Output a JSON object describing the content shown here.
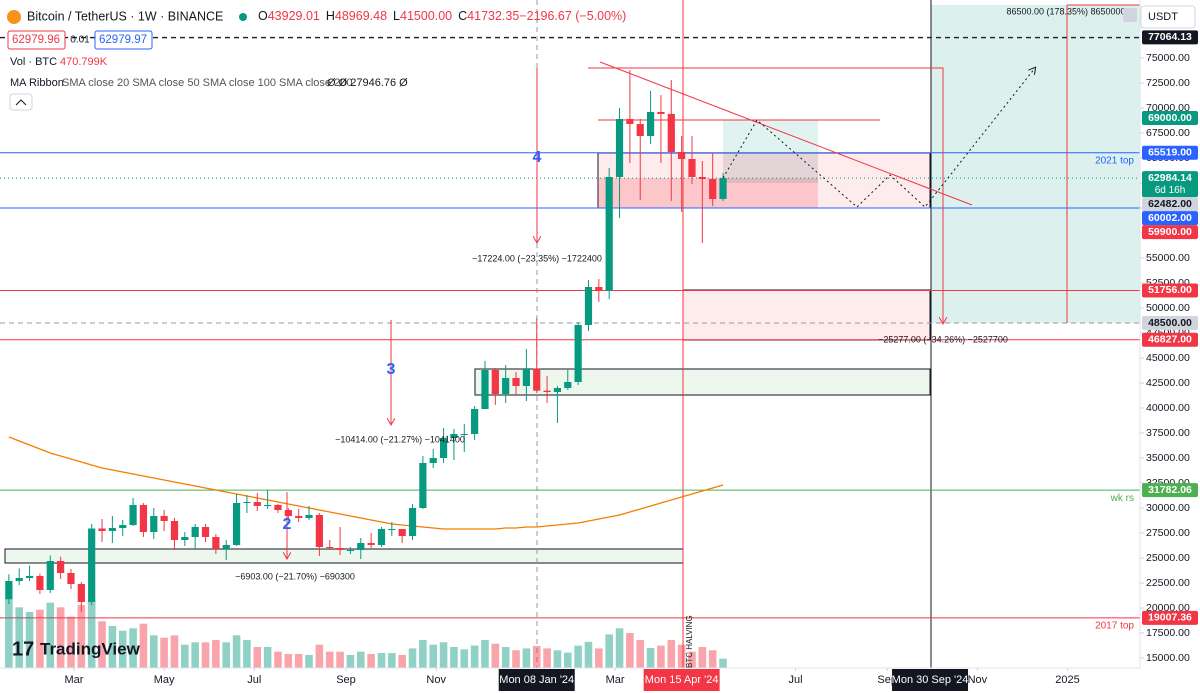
{
  "chart_data": {
    "type": "candlestick",
    "title": "Bitcoin / TetherUS · 1W · BINANCE",
    "ohlc_legend": [
      {
        "key": "O",
        "value": "43929.01"
      },
      {
        "key": "H",
        "value": "48969.48"
      },
      {
        "key": "L",
        "value": "41500.00"
      },
      {
        "key": "C",
        "value": "41732.35"
      },
      {
        "key": "",
        "value": "−2196.67 (−5.00%)"
      }
    ],
    "bid": "62979.96",
    "spread": "0.01",
    "ask": "62979.97",
    "volume_legend": {
      "title": "Vol · BTC",
      "value": "470.799K"
    },
    "ma_legend": {
      "title": "MA Ribbon",
      "inputs": "SMA close 20 SMA close 50 SMA close 100 SMA close 200",
      "values": "Ø Ø 27946.76 Ø"
    },
    "currency": "USDT",
    "brand": "TradingView",
    "x": [
      "2023-01-16",
      "2023-01-23",
      "2023-01-30",
      "2023-02-06",
      "2023-02-13",
      "2023-02-20",
      "2023-02-27",
      "2023-03-06",
      "2023-03-13",
      "2023-03-20",
      "2023-03-27",
      "2023-04-03",
      "2023-04-10",
      "2023-04-17",
      "2023-04-24",
      "2023-05-01",
      "2023-05-08",
      "2023-05-15",
      "2023-05-22",
      "2023-05-29",
      "2023-06-05",
      "2023-06-12",
      "2023-06-19",
      "2023-06-26",
      "2023-07-03",
      "2023-07-10",
      "2023-07-17",
      "2023-07-24",
      "2023-07-31",
      "2023-08-07",
      "2023-08-14",
      "2023-08-21",
      "2023-08-28",
      "2023-09-04",
      "2023-09-11",
      "2023-09-18",
      "2023-09-25",
      "2023-10-02",
      "2023-10-09",
      "2023-10-16",
      "2023-10-23",
      "2023-10-30",
      "2023-11-06",
      "2023-11-13",
      "2023-11-20",
      "2023-11-27",
      "2023-12-04",
      "2023-12-11",
      "2023-12-18",
      "2023-12-25",
      "2024-01-01",
      "2024-01-08",
      "2024-01-15",
      "2024-01-22",
      "2024-01-29",
      "2024-02-05",
      "2024-02-12",
      "2024-02-19",
      "2024-02-26",
      "2024-03-04",
      "2024-03-11",
      "2024-03-18",
      "2024-03-25",
      "2024-04-01",
      "2024-04-08",
      "2024-04-15",
      "2024-04-22",
      "2024-04-29",
      "2024-05-06",
      "2024-05-13"
    ],
    "open": [
      20880,
      22700,
      23000,
      23200,
      21800,
      24700,
      23500,
      22400,
      20600,
      27950,
      27700,
      28000,
      28300,
      30300,
      27600,
      29200,
      28700,
      26800,
      27100,
      28100,
      27100,
      25900,
      26300,
      30500,
      30600,
      30200,
      30300,
      29800,
      29200,
      29000,
      29300,
      26100,
      26000,
      25800,
      25800,
      26500,
      26300,
      27900,
      27900,
      27200,
      30000,
      34500,
      35000,
      37000,
      37400,
      37400,
      39900,
      43800,
      41400,
      43000,
      42200,
      43929.01,
      41732.35,
      41600,
      42000,
      42600,
      48300,
      52100,
      51700,
      63100,
      68900,
      68400,
      67200,
      69600,
      69400,
      65600,
      64900,
      63100,
      62900,
      60900
    ],
    "high": [
      23370,
      23960,
      24250,
      23440,
      25250,
      25130,
      23900,
      22600,
      28400,
      28900,
      29200,
      28800,
      31000,
      30500,
      30000,
      29800,
      29000,
      27600,
      28400,
      28400,
      27400,
      26800,
      31400,
      31300,
      31500,
      31800,
      30400,
      30000,
      29900,
      30200,
      29500,
      26800,
      28100,
      26100,
      27000,
      27500,
      28100,
      28600,
      27900,
      30400,
      35200,
      35900,
      38000,
      37900,
      38400,
      40200,
      44700,
      44000,
      44300,
      43600,
      45900,
      48969.48,
      43200,
      42200,
      43800,
      48600,
      52800,
      52900,
      64000,
      70000,
      73800,
      68900,
      71700,
      71300,
      72800,
      67200,
      67200,
      64700,
      65500,
      63500
    ],
    "low": [
      20400,
      22300,
      22700,
      21400,
      21500,
      22900,
      21900,
      19600,
      20300,
      26600,
      26500,
      27200,
      28200,
      27100,
      26900,
      27700,
      25800,
      26200,
      25900,
      26600,
      25400,
      24800,
      26200,
      29500,
      29700,
      29900,
      29500,
      28900,
      28600,
      28800,
      25200,
      25800,
      25300,
      25400,
      24900,
      26000,
      26100,
      27200,
      26500,
      26800,
      29900,
      34000,
      34500,
      34800,
      35600,
      36800,
      39900,
      40300,
      40500,
      41300,
      40700,
      41500,
      40500,
      38500,
      41800,
      42300,
      47700,
      50600,
      50900,
      59000,
      64500,
      60800,
      66400,
      64500,
      60700,
      59600,
      62400,
      56500,
      60200,
      60700
    ],
    "close": [
      22700,
      23000,
      23200,
      21800,
      24700,
      23500,
      22400,
      20600,
      27950,
      27700,
      28000,
      28300,
      30300,
      27600,
      29200,
      28700,
      26800,
      27100,
      28100,
      27100,
      25900,
      26300,
      30500,
      30600,
      30200,
      30300,
      29800,
      29200,
      29000,
      29300,
      26100,
      26000,
      25800,
      25800,
      26500,
      26300,
      27900,
      27900,
      27200,
      30000,
      34500,
      35000,
      37000,
      37400,
      37400,
      39900,
      43800,
      41400,
      43000,
      42200,
      43900,
      41732.35,
      41600,
      42000,
      42600,
      48300,
      52100,
      51700,
      63100,
      68900,
      68400,
      67200,
      69600,
      69400,
      65600,
      64900,
      63100,
      62900,
      60900,
      62984.14
    ],
    "volume": [
      1500000,
      1300000,
      1200000,
      1250000,
      1400000,
      1300000,
      1100000,
      1350000,
      1450000,
      1000000,
      900000,
      800000,
      850000,
      950000,
      700000,
      650000,
      700000,
      500000,
      550000,
      550000,
      600000,
      550000,
      700000,
      600000,
      450000,
      450000,
      350000,
      300000,
      300000,
      280000,
      500000,
      350000,
      350000,
      280000,
      350000,
      300000,
      320000,
      320000,
      280000,
      420000,
      600000,
      500000,
      550000,
      450000,
      400000,
      480000,
      600000,
      520000,
      450000,
      380000,
      420000,
      470799,
      420000,
      380000,
      330000,
      480000,
      560000,
      420000,
      720000,
      850000,
      750000,
      600000,
      430000,
      480000,
      600000,
      500000,
      350000,
      450000,
      380000,
      200000
    ],
    "ma": {
      "color": "#f57c00",
      "values": [
        37100,
        36700,
        36300,
        35900,
        35500,
        35200,
        34900,
        34600,
        34300,
        34000,
        33800,
        33600,
        33400,
        33200,
        33000,
        32800,
        32600,
        32400,
        32200,
        32000,
        31800,
        31600,
        31400,
        31200,
        31000,
        30800,
        30600,
        30400,
        30200,
        30000,
        29800,
        29600,
        29400,
        29200,
        29000,
        28800,
        28600,
        28400,
        28300,
        28200,
        28100,
        28000,
        27900,
        27900,
        27900,
        27900,
        27900,
        27900,
        28000,
        28000,
        28100,
        28100,
        28200,
        28300,
        28400,
        28500,
        28700,
        28900,
        29100,
        29300,
        29600,
        29900,
        30200,
        30500,
        30800,
        31100,
        31400,
        31700,
        32000,
        32300
      ]
    },
    "up_color": "#089981",
    "down_color": "#f23645",
    "xlim": [
      "2023-01-10",
      "2025-02-19"
    ],
    "xticks": [
      {
        "value": "2023-03-01",
        "label": "Mar"
      },
      {
        "value": "2023-05-01",
        "label": "May"
      },
      {
        "value": "2023-07-01",
        "label": "Jul"
      },
      {
        "value": "2023-09-01",
        "label": "Sep"
      },
      {
        "value": "2023-11-01",
        "label": "Nov"
      },
      {
        "value": "2024-03-01",
        "label": "Mar"
      },
      {
        "value": "2024-07-01",
        "label": "Jul"
      },
      {
        "value": "2024-09-01",
        "label": "Sep"
      },
      {
        "value": "2024-11-01",
        "label": "Nov"
      },
      {
        "value": "2025-01-01",
        "label": "2025"
      }
    ],
    "x_markers": [
      {
        "value": "2024-01-08",
        "label": "Mon 08 Jan '24",
        "color": "#131722"
      },
      {
        "value": "2024-04-15",
        "label": "Mon 15 Apr '24",
        "color": "#f23645"
      },
      {
        "value": "2024-09-30",
        "label": "Mon 30 Sep '24",
        "color": "#131722"
      }
    ],
    "ylim": [
      14000,
      80800
    ],
    "yticks": [
      {
        "value": 75000,
        "label": "75000.00"
      },
      {
        "value": 72500,
        "label": "72500.00"
      },
      {
        "value": 70000,
        "label": "70000.00"
      },
      {
        "value": 67500,
        "label": "67500.00"
      },
      {
        "value": 65000,
        "label": "65000.00"
      },
      {
        "value": 62500,
        "label": "62500.00"
      },
      {
        "value": 60000,
        "label": "60000.00"
      },
      {
        "value": 57500,
        "label": "57500.00"
      },
      {
        "value": 55000,
        "label": "55000.00"
      },
      {
        "value": 52500,
        "label": "52500.00"
      },
      {
        "value": 50000,
        "label": "50000.00"
      },
      {
        "value": 47500,
        "label": "47500.00"
      },
      {
        "value": 45000,
        "label": "45000.00"
      },
      {
        "value": 42500,
        "label": "42500.00"
      },
      {
        "value": 40000,
        "label": "40000.00"
      },
      {
        "value": 37500,
        "label": "37500.00"
      },
      {
        "value": 35000,
        "label": "35000.00"
      },
      {
        "value": 32500,
        "label": "32500.00"
      },
      {
        "value": 30000,
        "label": "30000.00"
      },
      {
        "value": 27500,
        "label": "27500.00"
      },
      {
        "value": 25000,
        "label": "25000.00"
      },
      {
        "value": 22500,
        "label": "22500.00"
      },
      {
        "value": 20000,
        "label": "20000.00"
      },
      {
        "value": 17500,
        "label": "17500.00"
      },
      {
        "value": 15000,
        "label": "15000.00"
      }
    ],
    "grid": false,
    "levels": [
      {
        "value": 77064.13,
        "label": "77064.13",
        "color": "#131722",
        "line": "dashed"
      },
      {
        "value": 69000,
        "label": "69000.00",
        "color": "#089981",
        "line": "none"
      },
      {
        "value": 65519,
        "label": "65519.00",
        "color": "#2962ff",
        "line": "solid",
        "note": "2021 top"
      },
      {
        "value": 62984.14,
        "label": "62984.14",
        "color": "#089981",
        "line": "dotted",
        "countdown": "6d 16h"
      },
      {
        "value": 62482,
        "label": "62482.00",
        "color": "#d1d4dc",
        "line": "none"
      },
      {
        "value": 60002,
        "label": "60002.00",
        "color": "#2962ff",
        "line": "solid"
      },
      {
        "value": 59900,
        "label": "59900.00",
        "color": "#f23645",
        "line": "none"
      },
      {
        "value": 51756,
        "label": "51756.00",
        "color": "#f23645",
        "line": "solid"
      },
      {
        "value": 48500,
        "label": "48500.00",
        "color": "#d1d4dc",
        "line": "dashed"
      },
      {
        "value": 46827,
        "label": "46827.00",
        "color": "#f23645",
        "line": "solid"
      },
      {
        "value": 31782.06,
        "label": "31782.06",
        "color": "#4caf50",
        "line": "solid",
        "note": "wk rs"
      },
      {
        "value": 19007.36,
        "label": "19007.36",
        "color": "#f23645",
        "line": "solid",
        "note": "2017 top"
      }
    ],
    "annotations": [
      "4",
      "3",
      "2",
      "−17224.00 (−23.35%) −1722400",
      "−10414.00 (−21.27%) −1041400",
      "−6903.00 (−21.70%) −690300",
      "−25277.00 (−34.26%) −2527700",
      "86500.00 (178.35%) 8650000",
      "BTC HALVING"
    ]
  }
}
